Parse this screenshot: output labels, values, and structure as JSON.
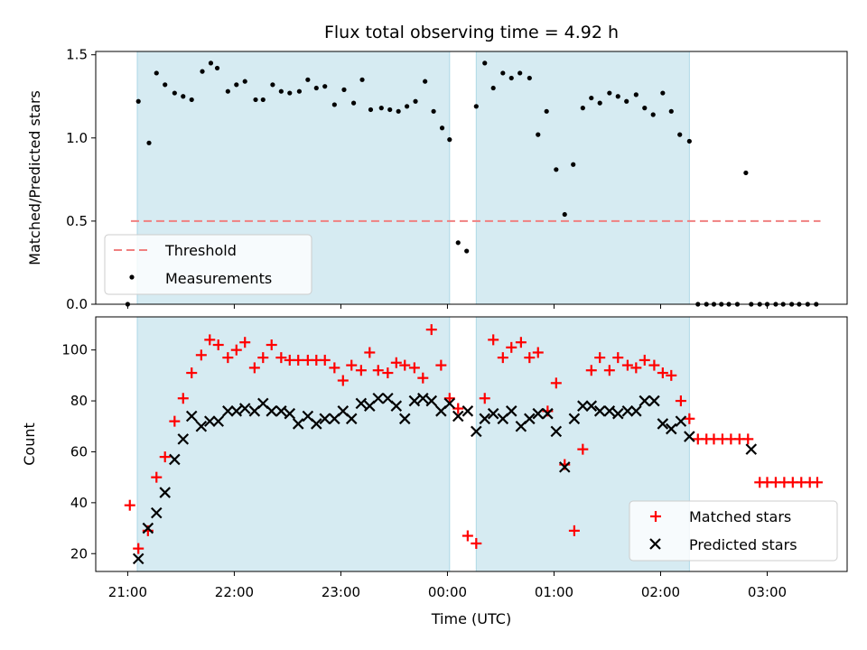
{
  "colors": {
    "shade": "#add8e6",
    "threshold": "#f08080",
    "measurement": "#000000",
    "matched": "#ff0000",
    "predicted": "#000000"
  },
  "chart_data": {
    "type": "scatter",
    "title": "Flux total observing time = 4.92 h",
    "xlabel": "Time (UTC)",
    "x_ticks": [
      "21:00",
      "22:00",
      "23:00",
      "00:00",
      "01:00",
      "02:00",
      "03:00"
    ],
    "x_range_hours": [
      20.7,
      27.75
    ],
    "shaded_intervals_hours": [
      [
        21.09,
        24.02
      ],
      [
        24.27,
        26.27
      ]
    ],
    "panels": [
      {
        "ylabel": "Matched/Predicted stars",
        "ylim": [
          0,
          1.52
        ],
        "yticks": [
          "0.0",
          "0.5",
          "1.0",
          "1.5"
        ],
        "ytick_values": [
          0,
          0.5,
          1.0,
          1.5
        ],
        "legend": {
          "position": "lower-left",
          "threshold_label": "Threshold",
          "measurements_label": "Measurements"
        },
        "threshold": {
          "value": 0.5,
          "x_range": [
            21.03,
            27.5
          ]
        },
        "measurements": {
          "x": [
            21.0,
            21.1,
            21.2,
            21.27,
            21.35,
            21.44,
            21.52,
            21.6,
            21.7,
            21.78,
            21.84,
            21.94,
            22.02,
            22.1,
            22.2,
            22.27,
            22.36,
            22.44,
            22.52,
            22.61,
            22.69,
            22.77,
            22.85,
            22.94,
            23.03,
            23.12,
            23.2,
            23.28,
            23.38,
            23.46,
            23.54,
            23.62,
            23.7,
            23.79,
            23.87,
            23.95,
            24.02,
            24.1,
            24.18,
            24.27,
            24.35,
            24.43,
            24.52,
            24.6,
            24.68,
            24.77,
            24.85,
            24.93,
            25.02,
            25.1,
            25.18,
            25.27,
            25.35,
            25.43,
            25.52,
            25.6,
            25.68,
            25.77,
            25.85,
            25.93,
            26.02,
            26.1,
            26.18,
            26.27,
            26.35,
            26.43,
            26.5,
            26.57,
            26.64,
            26.72,
            26.8,
            26.85,
            26.93,
            27.0,
            27.08,
            27.15,
            27.23,
            27.3,
            27.38,
            27.46
          ],
          "y": [
            0.0,
            1.22,
            0.97,
            1.39,
            1.32,
            1.27,
            1.25,
            1.23,
            1.4,
            1.45,
            1.42,
            1.28,
            1.32,
            1.34,
            1.23,
            1.23,
            1.32,
            1.28,
            1.27,
            1.28,
            1.35,
            1.3,
            1.31,
            1.2,
            1.29,
            1.21,
            1.35,
            1.17,
            1.18,
            1.17,
            1.16,
            1.19,
            1.22,
            1.34,
            1.16,
            1.06,
            0.99,
            0.37,
            0.32,
            1.19,
            1.45,
            1.3,
            1.39,
            1.36,
            1.39,
            1.36,
            1.02,
            1.16,
            0.81,
            0.54,
            0.84,
            1.18,
            1.24,
            1.21,
            1.27,
            1.25,
            1.22,
            1.26,
            1.18,
            1.14,
            1.27,
            1.16,
            1.02,
            0.98,
            0.0,
            0.0,
            0.0,
            0.0,
            0.0,
            0.0,
            0.79,
            0.0,
            0.0,
            0.0,
            0.0,
            0.0,
            0.0,
            0.0,
            0.0,
            0.0
          ]
        }
      },
      {
        "ylabel": "Count",
        "ylim": [
          13,
          113
        ],
        "yticks": [
          "20",
          "40",
          "60",
          "80",
          "100"
        ],
        "ytick_values": [
          20,
          40,
          60,
          80,
          100
        ],
        "legend": {
          "position": "lower-right",
          "matched_label": "Matched stars",
          "predicted_label": "Predicted stars"
        },
        "matched": {
          "x": [
            21.02,
            21.1,
            21.19,
            21.27,
            21.35,
            21.44,
            21.52,
            21.6,
            21.69,
            21.77,
            21.85,
            21.94,
            22.02,
            22.1,
            22.19,
            22.27,
            22.35,
            22.44,
            22.52,
            22.6,
            22.69,
            22.77,
            22.85,
            22.94,
            23.02,
            23.1,
            23.19,
            23.27,
            23.35,
            23.44,
            23.52,
            23.6,
            23.69,
            23.77,
            23.85,
            23.94,
            24.02,
            24.1,
            24.19,
            24.27,
            24.35,
            24.43,
            24.52,
            24.6,
            24.69,
            24.77,
            24.85,
            24.94,
            25.02,
            25.1,
            25.19,
            25.27,
            25.35,
            25.43,
            25.52,
            25.6,
            25.69,
            25.77,
            25.85,
            25.94,
            26.02,
            26.1,
            26.19,
            26.27,
            26.35,
            26.43,
            26.5,
            26.58,
            26.66,
            26.74,
            26.82,
            26.93,
            27.0,
            27.08,
            27.16,
            27.24,
            27.32,
            27.4,
            27.47
          ],
          "y": [
            39,
            22,
            29,
            50,
            58,
            72,
            81,
            91,
            98,
            104,
            102,
            97,
            100,
            103,
            93,
            97,
            102,
            97,
            96,
            96,
            96,
            96,
            96,
            93,
            88,
            94,
            92,
            99,
            92,
            91,
            95,
            94,
            93,
            89,
            108,
            94,
            81,
            77,
            27,
            24,
            81,
            104,
            97,
            101,
            103,
            97,
            99,
            76,
            87,
            55,
            29,
            61,
            92,
            97,
            92,
            97,
            94,
            93,
            96,
            94,
            91,
            90,
            80,
            73,
            65,
            65,
            65,
            65,
            65,
            65,
            65,
            48,
            48,
            48,
            48,
            48,
            48,
            48,
            48
          ]
        },
        "predicted": {
          "x": [
            21.1,
            21.19,
            21.27,
            21.35,
            21.44,
            21.52,
            21.6,
            21.69,
            21.77,
            21.85,
            21.94,
            22.02,
            22.1,
            22.19,
            22.27,
            22.35,
            22.44,
            22.52,
            22.6,
            22.69,
            22.77,
            22.85,
            22.94,
            23.02,
            23.1,
            23.19,
            23.27,
            23.35,
            23.44,
            23.52,
            23.6,
            23.69,
            23.77,
            23.85,
            23.94,
            24.02,
            24.1,
            24.19,
            24.27,
            24.35,
            24.43,
            24.52,
            24.6,
            24.69,
            24.77,
            24.85,
            24.94,
            25.02,
            25.1,
            25.19,
            25.27,
            25.35,
            25.43,
            25.52,
            25.6,
            25.69,
            25.77,
            25.85,
            25.94,
            26.02,
            26.1,
            26.19,
            26.27,
            26.85
          ],
          "y": [
            18,
            30,
            36,
            44,
            57,
            65,
            74,
            70,
            72,
            72,
            76,
            76,
            77,
            76,
            79,
            76,
            76,
            75,
            71,
            74,
            71,
            73,
            73,
            76,
            73,
            79,
            78,
            81,
            81,
            78,
            73,
            80,
            81,
            80,
            76,
            79,
            74,
            76,
            68,
            73,
            75,
            73,
            76,
            70,
            73,
            75,
            75,
            68,
            54,
            73,
            78,
            78,
            76,
            76,
            75,
            76,
            76,
            80,
            80,
            71,
            69,
            72,
            66,
            61
          ]
        }
      }
    ]
  }
}
